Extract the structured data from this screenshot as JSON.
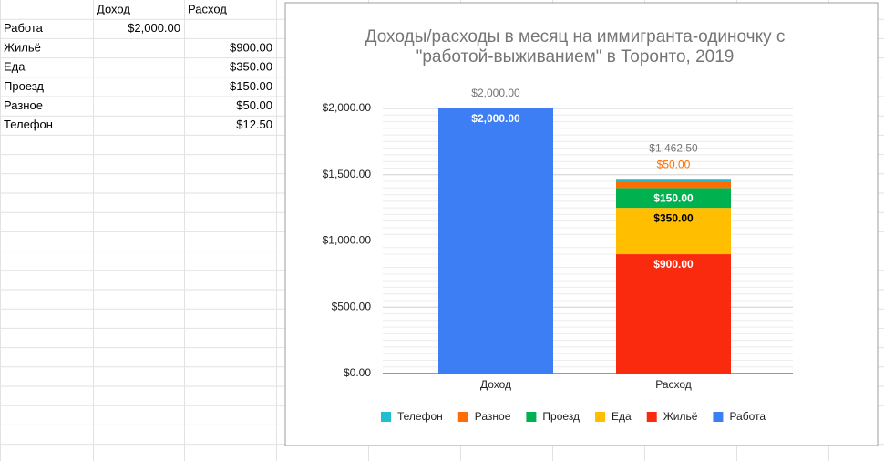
{
  "table": {
    "header": [
      "Доход",
      "Расход"
    ],
    "rows": [
      {
        "name": "Работа",
        "income": "$2,000.00"
      },
      {
        "name": "Жильё",
        "expense": "$900.00"
      },
      {
        "name": "Еда",
        "expense": "$350.00"
      },
      {
        "name": "Проезд",
        "expense": "$150.00"
      },
      {
        "name": "Разное",
        "expense": "$50.00"
      },
      {
        "name": "Телефон",
        "expense": "$12.50"
      }
    ]
  },
  "chart_data": {
    "type": "stacked-bar",
    "title": [
      "Доходы/расходы в месяц на иммигранта-одиночку с",
      "\"работой-выживанием\" в Торонто, 2019"
    ],
    "categories": [
      "Доход",
      "Расход"
    ],
    "series": [
      {
        "name": "Работа",
        "color": "#3d7ef5",
        "values": [
          2000,
          null
        ],
        "value_labels": [
          "$2,000.00",
          null
        ]
      },
      {
        "name": "Жильё",
        "color": "#fa2a0f",
        "values": [
          null,
          900
        ],
        "value_labels": [
          null,
          "$900.00"
        ]
      },
      {
        "name": "Еда",
        "color": "#ffbf00",
        "values": [
          null,
          350
        ],
        "value_labels": [
          null,
          "$350.00"
        ]
      },
      {
        "name": "Проезд",
        "color": "#00b14f",
        "values": [
          null,
          150
        ],
        "value_labels": [
          null,
          "$150.00"
        ]
      },
      {
        "name": "Разное",
        "color": "#ff6d01",
        "values": [
          null,
          50
        ],
        "value_labels": [
          null,
          "$50.00"
        ]
      },
      {
        "name": "Телефон",
        "color": "#1fbfcf",
        "values": [
          null,
          12.5
        ],
        "value_labels": [
          null,
          null
        ]
      }
    ],
    "totals": [
      2000,
      1462.5
    ],
    "total_labels": [
      "$2,000.00",
      "$1,462.50"
    ],
    "ylim": [
      0,
      2000
    ],
    "yticks": [
      {
        "value": 0,
        "label": "$0.00"
      },
      {
        "value": 500,
        "label": "$500.00"
      },
      {
        "value": 1000,
        "label": "$1,000.00"
      },
      {
        "value": 1500,
        "label": "$1,500.00"
      },
      {
        "value": 2000,
        "label": "$2,000.00"
      }
    ],
    "grid": true,
    "minor_grid": 9,
    "legend": "bottom",
    "legend_order": "reversed"
  }
}
